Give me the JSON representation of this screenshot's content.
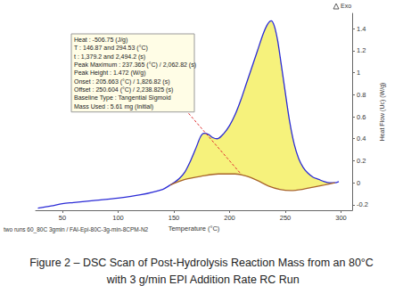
{
  "chart_data": {
    "type": "line",
    "title": "Figure 2 – DSC Scan of Post-Hydrolysis Reaction Mass from an 80°C with 3 g/min EPI Addition Rate RC Run",
    "subtitle": "two runs 60_80C 3gmin / FAI-Epi-80C-3g-min-8CPM-N2",
    "x_label": "Temperature (°C)",
    "y_label": "Heat Flow (Uc) (W/g)",
    "annotations": {
      "exo": "Exo",
      "results": [
        "Heat : -506.75 (J/g)",
        "T : 146.87 and 294.53 (°C)",
        "t : 1,379.2 and 2,494.2 (s)",
        "Peak Maximum : 237.365 (°C) / 2,062.82 (s)",
        "Peak Height : 1.472 (W/g)",
        "Onset : 205.663 (°C) / 1,826.82 (s)",
        "Offset : 250.604 (°C) / 2,238.825 (s)",
        "Baseline Type : Tangential Sigmoid",
        "Mass Used : 5.61 mg (Initial)"
      ]
    },
    "series": [
      {
        "color": "#2b2bd6",
        "line_style": "solid",
        "x": [
          28,
          40,
          50,
          60,
          80,
          100,
          120,
          140,
          146.87,
          150,
          155,
          160,
          165,
          170,
          174,
          177,
          181,
          185,
          189,
          195,
          200,
          205,
          210,
          215,
          220,
          225,
          230,
          234,
          237.365,
          240,
          243,
          246,
          250,
          254,
          258,
          262,
          266,
          270,
          275,
          280,
          285,
          290,
          294.53,
          298
        ],
        "values": [
          -0.23,
          -0.21,
          -0.19,
          -0.18,
          -0.16,
          -0.14,
          -0.11,
          -0.06,
          -0.02,
          0.0,
          0.04,
          0.1,
          0.2,
          0.32,
          0.42,
          0.45,
          0.44,
          0.41,
          0.4,
          0.45,
          0.52,
          0.62,
          0.75,
          0.9,
          1.05,
          1.2,
          1.35,
          1.44,
          1.472,
          1.43,
          1.3,
          1.1,
          0.82,
          0.55,
          0.35,
          0.22,
          0.14,
          0.09,
          0.05,
          0.03,
          0.01,
          0.0,
          0.0,
          0.01
        ]
      },
      {
        "color": "#a8642a",
        "line_style": "solid",
        "x": [
          146.87,
          160,
          175,
          190,
          205,
          215,
          225,
          235,
          245,
          255,
          265,
          275,
          285,
          294.53
        ],
        "values": [
          -0.02,
          0.03,
          0.06,
          0.08,
          0.08,
          0.06,
          0.02,
          -0.03,
          -0.06,
          -0.07,
          -0.06,
          -0.04,
          -0.02,
          0.0
        ]
      }
    ],
    "xlim": [
      26,
      310
    ],
    "xticks": [
      50,
      100,
      150,
      200,
      250,
      300
    ],
    "ylim": [
      -0.25,
      1.54
    ],
    "yticks": [
      -0.2,
      0,
      0.2,
      0.4,
      0.6,
      0.8,
      1,
      1.2,
      1.4
    ],
    "grid": false
  }
}
